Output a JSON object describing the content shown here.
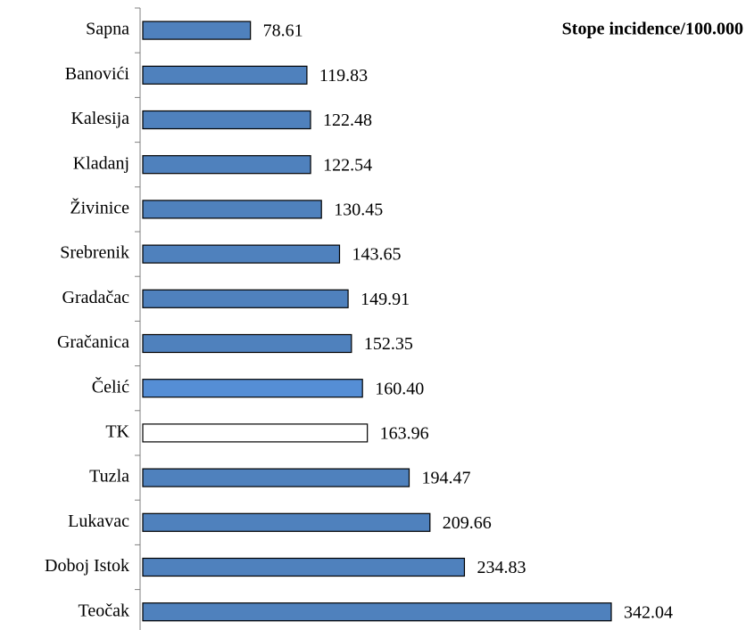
{
  "chart_data": {
    "type": "barh",
    "title": "Stope incidence/100.000",
    "categories": [
      "Sapna",
      "Banovići",
      "Kalesija",
      "Kladanj",
      "Živinice",
      "Srebrenik",
      "Gradačac",
      "Gračanica",
      "Čelić",
      "TK",
      "Tuzla",
      "Lukavac",
      "Doboj Istok",
      "Teočak"
    ],
    "values": [
      78.61,
      119.83,
      122.48,
      122.54,
      130.45,
      143.65,
      149.91,
      152.35,
      160.4,
      163.96,
      194.47,
      209.66,
      234.83,
      342.04
    ],
    "value_labels": [
      "78.61",
      "119.83",
      "122.48",
      "122.54",
      "130.45",
      "143.65",
      "149.91",
      "152.35",
      "160.40",
      "163.96",
      "194.47",
      "209.66",
      "234.83",
      "342.04"
    ],
    "colors": [
      "#4f81bd",
      "#4f81bd",
      "#4f81bd",
      "#4f81bd",
      "#4f81bd",
      "#4f81bd",
      "#4f81bd",
      "#4f81bd",
      "#558ed5",
      "#ffffff",
      "#4f81bd",
      "#4f81bd",
      "#4f81bd",
      "#4f81bd"
    ]
  }
}
